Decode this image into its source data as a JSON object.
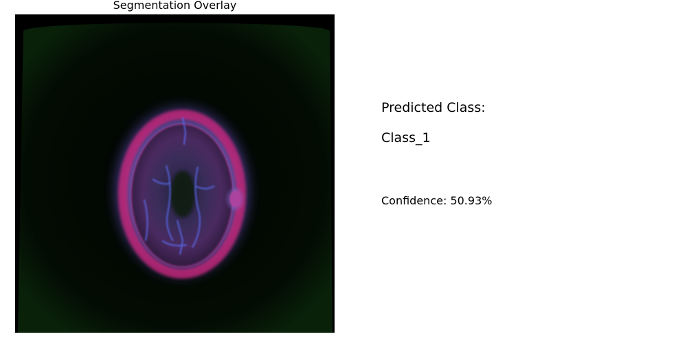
{
  "overlay_panel": {
    "title": "Segmentation Overlay"
  },
  "prediction": {
    "heading": "Predicted Class:",
    "class_label": "Class_1",
    "confidence_text": "Confidence: 50.93%"
  },
  "colors": {
    "background": "#ffffff",
    "image_background": "#000000",
    "overlay_magenta": "#c8287a",
    "overlay_violet": "#8a78e6",
    "faint_green_border": "#0c2a0c"
  }
}
